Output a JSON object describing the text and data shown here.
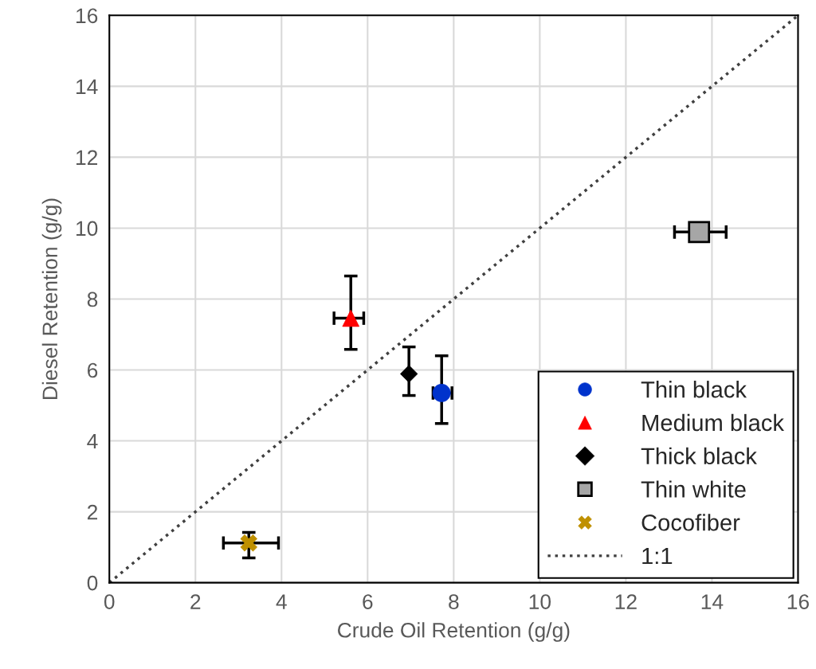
{
  "chart_data": {
    "type": "scatter",
    "xlabel": "Crude Oil Retention (g/g)",
    "ylabel": "Diesel Retention (g/g)",
    "xlim": [
      0,
      16
    ],
    "ylim": [
      0,
      16
    ],
    "xticks": [
      0,
      2,
      4,
      6,
      8,
      10,
      12,
      14,
      16
    ],
    "yticks": [
      0,
      2,
      4,
      6,
      8,
      10,
      12,
      14,
      16
    ],
    "grid": true,
    "legend": "bottom right",
    "series": [
      {
        "name": "Thin black",
        "color": "#0033cc",
        "marker": "circle",
        "x": [
          7.72
        ],
        "values": [
          5.35
        ],
        "errors": [
          [
            4.49,
            6.4
          ]
        ],
        "xerrors": [
          [
            7.52,
            7.96
          ]
        ]
      },
      {
        "name": "Medium black",
        "color": "#ff0000",
        "marker": "triangle",
        "x": [
          5.61
        ],
        "values": [
          7.46
        ],
        "errors": [
          [
            6.58,
            8.65
          ]
        ],
        "xerrors": [
          [
            5.22,
            5.91
          ]
        ]
      },
      {
        "name": "Thick black",
        "color": "#000000",
        "marker": "diamond",
        "x": [
          6.96
        ],
        "values": [
          5.89
        ],
        "errors": [
          [
            5.28,
            6.65
          ]
        ],
        "xerrors": [
          null
        ]
      },
      {
        "name": "Thin white",
        "color": "#a6a6a6",
        "marker": "square",
        "x": [
          13.7
        ],
        "values": [
          9.89
        ],
        "errors": [
          null
        ],
        "xerrors": [
          [
            13.13,
            14.33
          ]
        ]
      },
      {
        "name": "Cocofiber",
        "color": "#bf9000",
        "marker": "cross",
        "x": [
          3.24
        ],
        "values": [
          1.12
        ],
        "errors": [
          [
            0.7,
            1.42
          ]
        ],
        "xerrors": [
          [
            2.65,
            3.93
          ]
        ]
      },
      {
        "name": "1:1",
        "type": "line",
        "color": "#404040",
        "line_style": "dotted",
        "marker": "none",
        "x": [
          0,
          16
        ],
        "values": [
          0,
          16
        ]
      }
    ]
  }
}
